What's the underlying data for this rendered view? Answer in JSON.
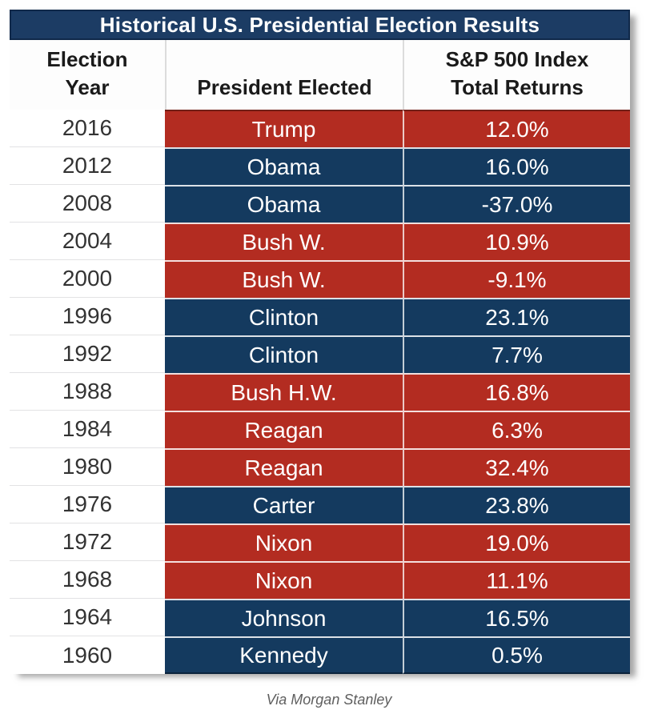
{
  "title": "Historical U.S. Presidential Election Results",
  "caption": "Via Morgan Stanley",
  "colors": {
    "title_bar": "#1C3C64",
    "republican": "#B32C21",
    "democrat": "#143A5F",
    "header_text": "#1A1A1A",
    "year_text": "#333333",
    "row_text": "#FFFFFF",
    "caption_text": "#5F5F5F"
  },
  "header": {
    "year_line1": "Election",
    "year_line2": "Year",
    "president": "President Elected",
    "returns_line1": "S&P 500 Index",
    "returns_line2": "Total Returns"
  },
  "rows": [
    {
      "year": "2016",
      "president": "Trump",
      "return": "12.0%",
      "party": "republican"
    },
    {
      "year": "2012",
      "president": "Obama",
      "return": "16.0%",
      "party": "democrat"
    },
    {
      "year": "2008",
      "president": "Obama",
      "return": "-37.0%",
      "party": "democrat"
    },
    {
      "year": "2004",
      "president": "Bush W.",
      "return": "10.9%",
      "party": "republican"
    },
    {
      "year": "2000",
      "president": "Bush W.",
      "return": "-9.1%",
      "party": "republican"
    },
    {
      "year": "1996",
      "president": "Clinton",
      "return": "23.1%",
      "party": "democrat"
    },
    {
      "year": "1992",
      "president": "Clinton",
      "return": "7.7%",
      "party": "democrat"
    },
    {
      "year": "1988",
      "president": "Bush H.W.",
      "return": "16.8%",
      "party": "republican"
    },
    {
      "year": "1984",
      "president": "Reagan",
      "return": "6.3%",
      "party": "republican"
    },
    {
      "year": "1980",
      "president": "Reagan",
      "return": "32.4%",
      "party": "republican"
    },
    {
      "year": "1976",
      "president": "Carter",
      "return": "23.8%",
      "party": "democrat"
    },
    {
      "year": "1972",
      "president": "Nixon",
      "return": "19.0%",
      "party": "republican"
    },
    {
      "year": "1968",
      "president": "Nixon",
      "return": "11.1%",
      "party": "republican"
    },
    {
      "year": "1964",
      "president": "Johnson",
      "return": "16.5%",
      "party": "democrat"
    },
    {
      "year": "1960",
      "president": "Kennedy",
      "return": "0.5%",
      "party": "democrat"
    }
  ],
  "chart_data": {
    "type": "table",
    "title": "Historical U.S. Presidential Election Results",
    "columns": [
      "Election Year",
      "President Elected",
      "S&P 500 Index Total Returns"
    ],
    "rows": [
      [
        "2016",
        "Trump",
        "12.0%"
      ],
      [
        "2012",
        "Obama",
        "16.0%"
      ],
      [
        "2008",
        "Obama",
        "-37.0%"
      ],
      [
        "2004",
        "Bush W.",
        "10.9%"
      ],
      [
        "2000",
        "Bush W.",
        "-9.1%"
      ],
      [
        "1996",
        "Clinton",
        "23.1%"
      ],
      [
        "1992",
        "Clinton",
        "7.7%"
      ],
      [
        "1988",
        "Bush H.W.",
        "16.8%"
      ],
      [
        "1984",
        "Reagan",
        "6.3%"
      ],
      [
        "1980",
        "Reagan",
        "32.4%"
      ],
      [
        "1976",
        "Carter",
        "23.8%"
      ],
      [
        "1972",
        "Nixon",
        "19.0%"
      ],
      [
        "1968",
        "Nixon",
        "11.1%"
      ],
      [
        "1964",
        "Johnson",
        "16.5%"
      ],
      [
        "1960",
        "Kennedy",
        "0.5%"
      ]
    ],
    "row_party_colors": [
      "republican",
      "democrat",
      "democrat",
      "republican",
      "republican",
      "democrat",
      "democrat",
      "republican",
      "republican",
      "republican",
      "democrat",
      "republican",
      "republican",
      "democrat",
      "democrat"
    ],
    "source": "Via Morgan Stanley"
  }
}
